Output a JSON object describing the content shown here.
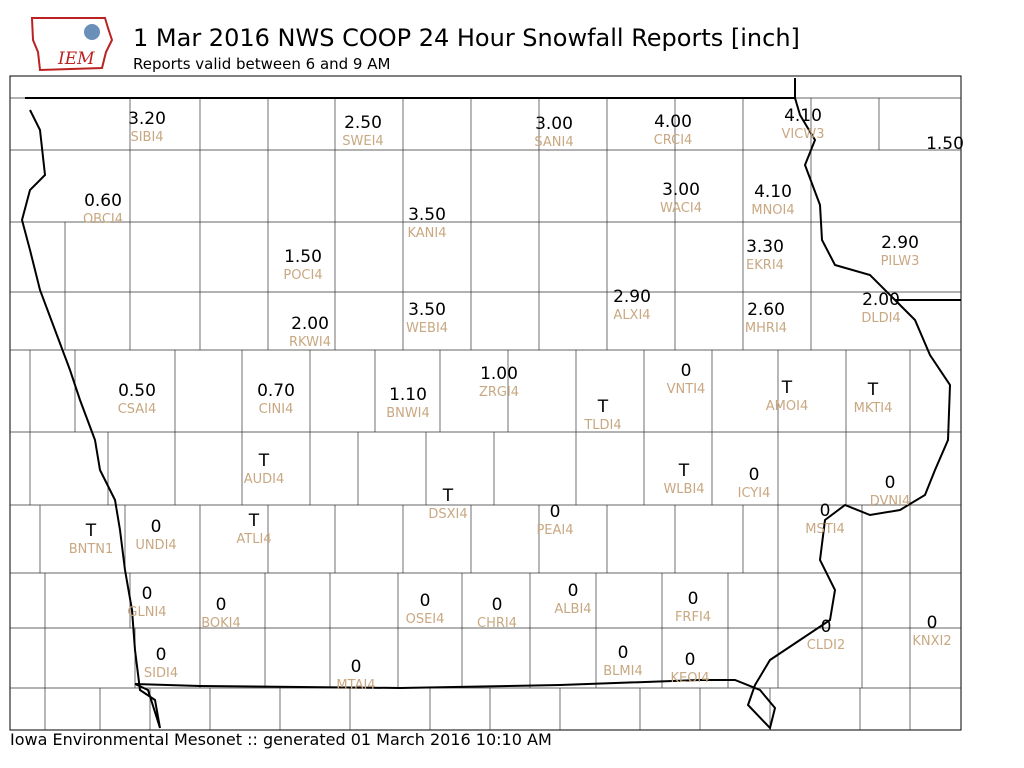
{
  "header": {
    "logo_text": "IEM",
    "title": "1 Mar 2016 NWS COOP 24 Hour Snowfall Reports [inch]",
    "subtitle": "Reports valid between 6 and 9 AM"
  },
  "reports": [
    {
      "value": "3.20",
      "station": "SIBI4"
    },
    {
      "value": "2.50",
      "station": "SWEI4"
    },
    {
      "value": "3.00",
      "station": "SANI4"
    },
    {
      "value": "4.00",
      "station": "CRCI4"
    },
    {
      "value": "4.10",
      "station": "VICW3"
    },
    {
      "value": "1.50"
    },
    {
      "value": "0.60",
      "station": "OBCI4"
    },
    {
      "value": "3.00",
      "station": "WACI4"
    },
    {
      "value": "4.10",
      "station": "MNOI4"
    },
    {
      "value": "3.50",
      "station": "KANI4"
    },
    {
      "value": "1.50",
      "station": "POCI4"
    },
    {
      "value": "3.30",
      "station": "EKRI4"
    },
    {
      "value": "2.90",
      "station": "PILW3"
    },
    {
      "value": "2.90",
      "station": "ALXI4"
    },
    {
      "value": "2.60",
      "station": "MHRI4"
    },
    {
      "value": "2.00",
      "station": "DLDI4"
    },
    {
      "value": "3.50",
      "station": "WEBI4"
    },
    {
      "value": "2.00",
      "station": "RKWI4"
    },
    {
      "value": "1.00",
      "station": "ZRGI4"
    },
    {
      "value": "0",
      "station": "VNTI4"
    },
    {
      "value": "0.50",
      "station": "CSAI4"
    },
    {
      "value": "0.70",
      "station": "CINI4"
    },
    {
      "value": "1.10",
      "station": "BNWI4"
    },
    {
      "value": "T",
      "station": "TLDI4"
    },
    {
      "value": "T",
      "station": "AMOI4"
    },
    {
      "value": "T",
      "station": "MKTI4"
    },
    {
      "value": "T",
      "station": "AUDI4"
    },
    {
      "value": "T",
      "station": "WLBI4"
    },
    {
      "value": "0",
      "station": "ICYI4"
    },
    {
      "value": "0",
      "station": "DVNI4"
    },
    {
      "value": "T",
      "station": "DSXI4"
    },
    {
      "value": "0",
      "station": "PEAI4"
    },
    {
      "value": "0",
      "station": "MSTI4"
    },
    {
      "value": "T",
      "station": "ATLI4"
    },
    {
      "value": "T",
      "station": "BNTN1"
    },
    {
      "value": "0",
      "station": "UNDI4"
    },
    {
      "value": "0",
      "station": "GLNI4"
    },
    {
      "value": "0",
      "station": "BOKI4"
    },
    {
      "value": "0",
      "station": "OSEI4"
    },
    {
      "value": "0",
      "station": "CHRI4"
    },
    {
      "value": "0",
      "station": "ALBI4"
    },
    {
      "value": "0",
      "station": "FRFI4"
    },
    {
      "value": "0",
      "station": "CLDI2"
    },
    {
      "value": "0",
      "station": "KNXI2"
    },
    {
      "value": "0",
      "station": "SIDI4"
    },
    {
      "value": "0",
      "station": "BLMI4"
    },
    {
      "value": "0",
      "station": "KEOI4"
    },
    {
      "value": "0",
      "station": "MTAI4"
    }
  ],
  "footer": "Iowa Environmental Mesonet :: generated 01 March 2016 10:10 AM"
}
